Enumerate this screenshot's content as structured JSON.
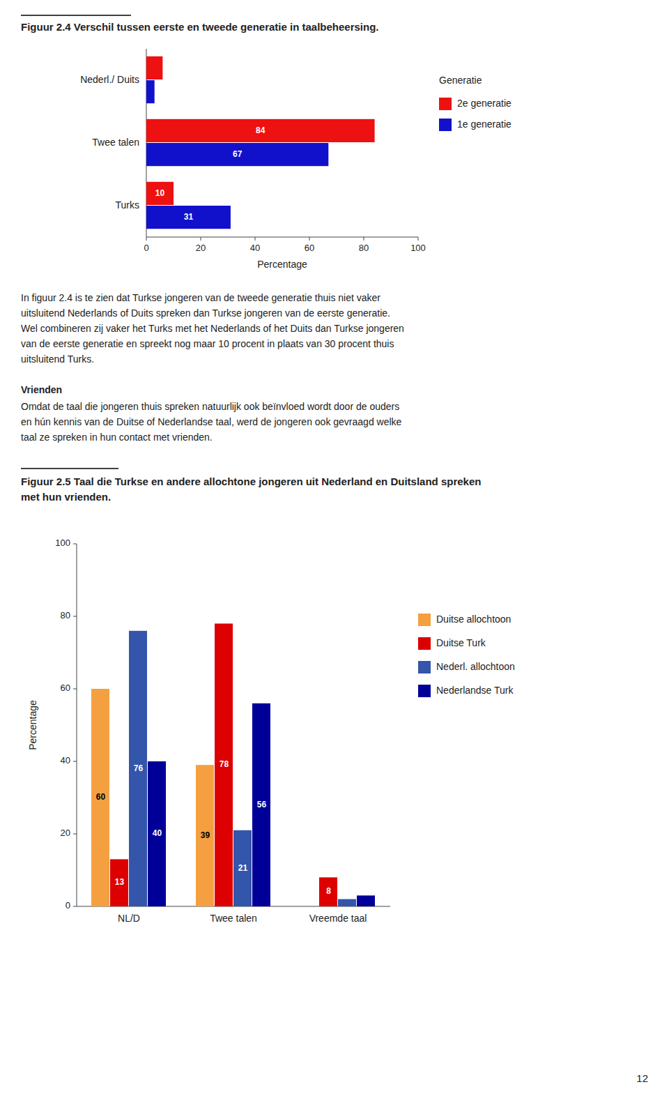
{
  "chart_data": [
    {
      "type": "bar",
      "orientation": "horizontal",
      "title": "Figuur 2.4 Verschil tussen eerste en tweede generatie in taalbeheersing.",
      "categories": [
        "Turks",
        "Twee talen",
        "Nederl./ Duits"
      ],
      "series": [
        {
          "name": "2e generatie",
          "color": "#ee1111",
          "values": [
            10,
            84,
            6
          ],
          "value_labels": [
            "10",
            "84",
            null
          ]
        },
        {
          "name": "1e generatie",
          "color": "#1111cc",
          "values": [
            31,
            67,
            3
          ],
          "value_labels": [
            "31",
            "67",
            null
          ]
        }
      ],
      "xlabel": "Percentage",
      "xlim": [
        0,
        100
      ],
      "xticks": [
        0,
        20,
        40,
        60,
        80,
        100
      ],
      "legend": "right",
      "legend_title": "Generatie",
      "data_labels": true,
      "grid": false
    },
    {
      "type": "bar",
      "title": "Figuur 2.5 Taal die Turkse en andere allochtone jongeren uit Nederland en Duitsland spreken\nmet hun vrienden.",
      "categories": [
        "NL/D",
        "Twee talen",
        "Vreemde taal"
      ],
      "series": [
        {
          "name": "Duitse allochtoon",
          "color": "#f4a040",
          "values": [
            60,
            39,
            0
          ],
          "value_labels": [
            "60",
            "39",
            null
          ]
        },
        {
          "name": "Duitse Turk",
          "color": "#dd0000",
          "values": [
            13,
            78,
            8
          ],
          "value_labels": [
            "13",
            "78",
            "8"
          ]
        },
        {
          "name": "Nederl. allochtoon",
          "color": "#3355aa",
          "values": [
            76,
            21,
            2
          ],
          "value_labels": [
            "76",
            "21",
            null
          ]
        },
        {
          "name": "Nederlandse Turk",
          "color": "#000099",
          "values": [
            40,
            56,
            3
          ],
          "value_labels": [
            "40",
            "56",
            null
          ]
        }
      ],
      "ylabel": "Percentage",
      "ylim": [
        0,
        100
      ],
      "yticks": [
        0,
        20,
        40,
        60,
        80,
        100
      ],
      "legend": "right",
      "data_labels": true,
      "grid": false
    }
  ],
  "text": {
    "paragraph1": [
      "In figuur 2.4 is te zien dat Turkse jongeren van de tweede generatie thuis niet vaker",
      "uitsluitend Nederlands of Duits spreken dan Turkse jongeren van de eerste generatie.",
      "Wel combineren zij vaker het Turks met het Nederlands of het Duits dan Turkse jongeren",
      "van de eerste generatie en spreekt nog maar 10 procent in plaats van 30 procent thuis",
      "uitsluitend Turks."
    ],
    "heading": "Vrienden",
    "paragraph2": [
      "Omdat de taal die jongeren thuis spreken natuurlijk ook beïnvloed wordt door de ouders",
      "en hún kennis van de Duitse of Nederlandse taal, werd de jongeren ook gevraagd welke",
      "taal ze spreken in hun contact met vrienden."
    ],
    "page_number": "12"
  }
}
